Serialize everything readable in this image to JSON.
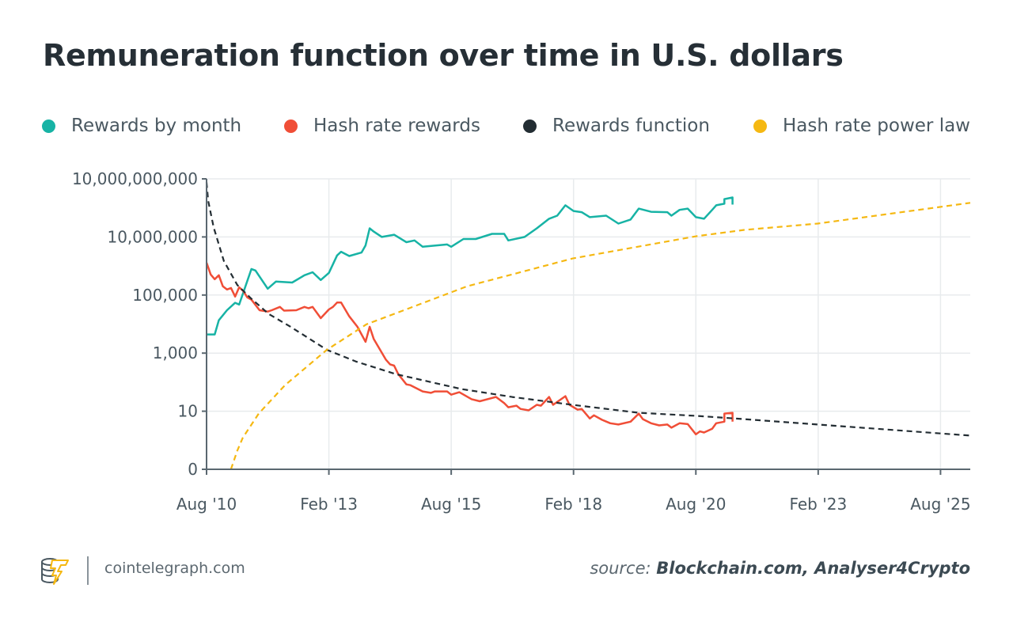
{
  "title": "Remuneration function over time in U.S. dollars",
  "legend": [
    {
      "label": "Rewards by month",
      "color": "#17b3a5"
    },
    {
      "label": "Hash rate rewards",
      "color": "#f04e37"
    },
    {
      "label": "Rewards function",
      "color": "#232d33"
    },
    {
      "label": "Hash rate power law",
      "color": "#f5b812"
    }
  ],
  "footer": {
    "logo_icon": "cointelegraph-coin-bolt-icon",
    "site": "cointelegraph.com",
    "source_prefix": "source:",
    "source_names": "Blockchain.com,  Analyser4Crypto"
  },
  "chart_data": {
    "type": "line",
    "title": "Remuneration function over time in U.S. dollars",
    "xlabel": "",
    "ylabel": "",
    "y_scale": "log (irregular tick spacing)",
    "grid": true,
    "legend_position": "top",
    "xlim": [
      "2010-08",
      "2026-03-10"
    ],
    "x_ticks": [
      {
        "date": "2010-08",
        "label": "Aug '10"
      },
      {
        "date": "2013-02",
        "label": "Feb '13"
      },
      {
        "date": "2015-08",
        "label": "Aug '15"
      },
      {
        "date": "2018-02",
        "label": "Feb '18"
      },
      {
        "date": "2020-08",
        "label": "Aug '20"
      },
      {
        "date": "2023-02",
        "label": "Feb '23"
      },
      {
        "date": "2025-08",
        "label": "Aug '25"
      }
    ],
    "y_ticks": [
      {
        "value": 0,
        "label": "0"
      },
      {
        "value": 10,
        "label": "10"
      },
      {
        "value": 1000,
        "label": "1,000"
      },
      {
        "value": 100000,
        "label": "100,000"
      },
      {
        "value": 10000000,
        "label": "10,000,000"
      },
      {
        "value": 10000000000,
        "label": "10,000,000,000"
      }
    ],
    "series": [
      {
        "name": "Rewards by month",
        "color": "#17b3a5",
        "style": "solid",
        "points": [
          [
            "2010-08",
            4400
          ],
          [
            "2010-10",
            4400
          ],
          [
            "2010-11",
            13500
          ],
          [
            "2011-01",
            30000
          ],
          [
            "2011-03",
            54000
          ],
          [
            "2011-04",
            47000
          ],
          [
            "2011-07",
            790000
          ],
          [
            "2011-08",
            700000
          ],
          [
            "2011-11",
            165000
          ],
          [
            "2012-01",
            290000
          ],
          [
            "2012-05",
            270000
          ],
          [
            "2012-08",
            480000
          ],
          [
            "2012-10",
            610000
          ],
          [
            "2012-12",
            330000
          ],
          [
            "2013-02",
            580000
          ],
          [
            "2013-04",
            2300000
          ],
          [
            "2013-05",
            3100000
          ],
          [
            "2013-07",
            2200000
          ],
          [
            "2013-10",
            2900000
          ],
          [
            "2013-11",
            5100000
          ],
          [
            "2013-12",
            28000000
          ],
          [
            "2014-01",
            19000000
          ],
          [
            "2014-03",
            10000000
          ],
          [
            "2014-06",
            13000000
          ],
          [
            "2014-09",
            6600000
          ],
          [
            "2014-11",
            7600000
          ],
          [
            "2015-01",
            4600000
          ],
          [
            "2015-07",
            5500000
          ],
          [
            "2015-08",
            4600000
          ],
          [
            "2015-11",
            8500000
          ],
          [
            "2016-02",
            8500000
          ],
          [
            "2016-06",
            14500000
          ],
          [
            "2016-09",
            14500000
          ],
          [
            "2016-10",
            7600000
          ],
          [
            "2017-02",
            10000000
          ],
          [
            "2017-05",
            28000000
          ],
          [
            "2017-08",
            87000000
          ],
          [
            "2017-10",
            126000000
          ],
          [
            "2017-12",
            430000000
          ],
          [
            "2018-02",
            220000000
          ],
          [
            "2018-04",
            190000000
          ],
          [
            "2018-06",
            105000000
          ],
          [
            "2018-10",
            126000000
          ],
          [
            "2019-01",
            49000000
          ],
          [
            "2019-04",
            79000000
          ],
          [
            "2019-06",
            290000000
          ],
          [
            "2019-09",
            200000000
          ],
          [
            "2020-01",
            190000000
          ],
          [
            "2020-02",
            126000000
          ],
          [
            "2020-04",
            250000000
          ],
          [
            "2020-06",
            290000000
          ],
          [
            "2020-08",
            105000000
          ],
          [
            "2020-10",
            87000000
          ],
          [
            "2020-12",
            250000000
          ],
          [
            "2021-01",
            430000000
          ],
          [
            "2021-03",
            520000000
          ],
          [
            "2021-03",
            900000000
          ],
          [
            "2021-05",
            1100000000
          ],
          [
            "2021-05",
            470000000
          ]
        ]
      },
      {
        "name": "Hash rate rewards",
        "color": "#f04e37",
        "style": "solid",
        "points": [
          [
            "2010-08",
            1300000
          ],
          [
            "2010-09",
            510000
          ],
          [
            "2010-10",
            350000
          ],
          [
            "2010-11",
            480000
          ],
          [
            "2010-12",
            200000
          ],
          [
            "2011-01",
            155000
          ],
          [
            "2011-02",
            175000
          ],
          [
            "2011-03",
            89000
          ],
          [
            "2011-04",
            185000
          ],
          [
            "2011-05",
            138000
          ],
          [
            "2011-06",
            83000
          ],
          [
            "2011-07",
            69000
          ],
          [
            "2011-09",
            30000
          ],
          [
            "2011-11",
            27000
          ],
          [
            "2011-12",
            30000
          ],
          [
            "2012-02",
            39000
          ],
          [
            "2012-03",
            29000
          ],
          [
            "2012-06",
            30000
          ],
          [
            "2012-08",
            39000
          ],
          [
            "2012-09",
            35000
          ],
          [
            "2012-10",
            39000
          ],
          [
            "2012-12",
            16000
          ],
          [
            "2013-02",
            32000
          ],
          [
            "2013-03",
            39000
          ],
          [
            "2013-04",
            55000
          ],
          [
            "2013-05",
            55000
          ],
          [
            "2013-07",
            18500
          ],
          [
            "2013-09",
            8100
          ],
          [
            "2013-11",
            2450
          ],
          [
            "2013-12",
            8100
          ],
          [
            "2014-01",
            3100
          ],
          [
            "2014-04",
            590
          ],
          [
            "2014-05",
            410
          ],
          [
            "2014-06",
            370
          ],
          [
            "2014-07",
            190
          ],
          [
            "2014-09",
            84
          ],
          [
            "2014-10",
            79
          ],
          [
            "2015-01",
            48
          ],
          [
            "2015-03",
            43
          ],
          [
            "2015-04",
            48
          ],
          [
            "2015-07",
            48
          ],
          [
            "2015-08",
            37
          ],
          [
            "2015-10",
            45
          ],
          [
            "2016-01",
            26
          ],
          [
            "2016-03",
            22
          ],
          [
            "2016-07",
            31
          ],
          [
            "2016-09",
            19
          ],
          [
            "2016-10",
            13.7
          ],
          [
            "2016-12",
            15.5
          ],
          [
            "2017-01",
            12
          ],
          [
            "2017-03",
            10.7
          ],
          [
            "2017-05",
            16.6
          ],
          [
            "2017-06",
            15.5
          ],
          [
            "2017-08",
            31
          ],
          [
            "2017-09",
            16.6
          ],
          [
            "2017-12",
            33
          ],
          [
            "2018-01",
            16.6
          ],
          [
            "2018-03",
            11.3
          ],
          [
            "2018-04",
            12
          ],
          [
            "2018-06",
            7.5
          ],
          [
            "2018-07",
            8.5
          ],
          [
            "2018-09",
            7.1
          ],
          [
            "2018-11",
            6.2
          ],
          [
            "2019-01",
            5.9
          ],
          [
            "2019-04",
            6.6
          ],
          [
            "2019-06",
            9.1
          ],
          [
            "2019-07",
            7.3
          ],
          [
            "2019-09",
            6.2
          ],
          [
            "2019-11",
            5.7
          ],
          [
            "2020-01",
            5.9
          ],
          [
            "2020-02",
            5.2
          ],
          [
            "2020-04",
            6.2
          ],
          [
            "2020-06",
            6.0
          ],
          [
            "2020-08",
            4.0
          ],
          [
            "2020-09",
            4.5
          ],
          [
            "2020-10",
            4.3
          ],
          [
            "2020-12",
            5.0
          ],
          [
            "2021-01",
            6.2
          ],
          [
            "2021-03",
            6.6
          ],
          [
            "2021-03",
            9.1
          ],
          [
            "2021-05",
            9.4
          ],
          [
            "2021-05",
            6.6
          ]
        ]
      },
      {
        "name": "Rewards function",
        "color": "#232d33",
        "style": "dashed",
        "points": [
          [
            "2010-08-01",
            6600000000
          ],
          [
            "2010-08-13",
            760000000
          ],
          [
            "2010-09-24",
            31000000
          ],
          [
            "2010-12-08",
            1500000
          ],
          [
            "2011-03-18",
            220000
          ],
          [
            "2011-06-27",
            78000
          ],
          [
            "2011-11-10",
            22000
          ],
          [
            "2012-04-17",
            8200
          ],
          [
            "2013-01-16",
            1300
          ],
          [
            "2013-08-22",
            510
          ],
          [
            "2014-06-13",
            190
          ],
          [
            "2015-10-17",
            58
          ],
          [
            "2016-10-30",
            31
          ],
          [
            "2018-01-22",
            16.6
          ],
          [
            "2019-06-02",
            9.4
          ],
          [
            "2020-08-07",
            8.3
          ],
          [
            "2021-07-27",
            7.3
          ],
          [
            "2023-01-28",
            5.9
          ],
          [
            "2026-03-10",
            3.8
          ]
        ]
      },
      {
        "name": "Hash rate power law",
        "color": "#f5b812",
        "style": "dashed",
        "points": [
          [
            "2011-01-31",
            0
          ],
          [
            "2011-03-18",
            2.1
          ],
          [
            "2011-04-28",
            3.5
          ],
          [
            "2011-08-25",
            9.1
          ],
          [
            "2012-03-08",
            79
          ],
          [
            "2013-01-16",
            1300
          ],
          [
            "2013-11-07",
            9800
          ],
          [
            "2014-09-22",
            35000
          ],
          [
            "2015-11-27",
            200000
          ],
          [
            "2018-01-22",
            1800000
          ],
          [
            "2020-08-07",
            11000000
          ],
          [
            "2021-07-27",
            23000000
          ],
          [
            "2023-01-28",
            49000000
          ],
          [
            "2026-03-10",
            580000000
          ]
        ]
      }
    ]
  }
}
